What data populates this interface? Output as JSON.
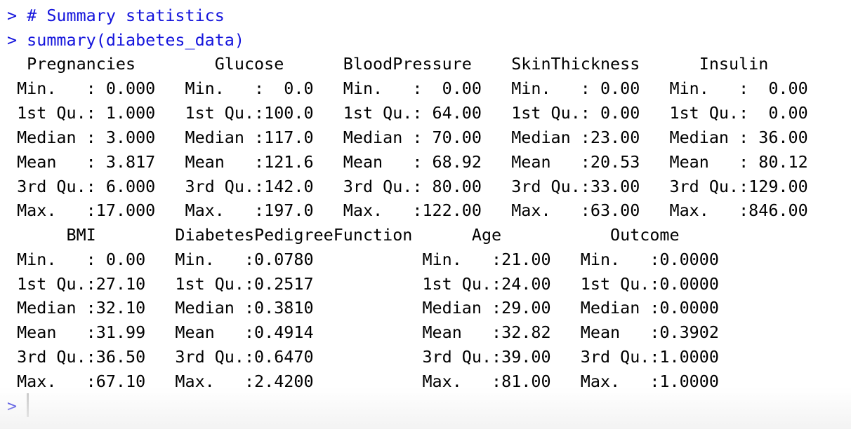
{
  "console": {
    "prompt": ">",
    "commands": [
      "> # Summary statistics",
      "> summary(diabetes_data)"
    ],
    "output_lines": [
      "  Pregnancies        Glucose      BloodPressure    SkinThickness      Insulin     ",
      " Min.   : 0.000   Min.   :  0.0   Min.   :  0.00   Min.   : 0.00   Min.   :  0.00  ",
      " 1st Qu.: 1.000   1st Qu.:100.0   1st Qu.: 64.00   1st Qu.: 0.00   1st Qu.:  0.00  ",
      " Median : 3.000   Median :117.0   Median : 70.00   Median :23.00   Median : 36.00  ",
      " Mean   : 3.817   Mean   :121.6   Mean   : 68.92   Mean   :20.53   Mean   : 80.12  ",
      " 3rd Qu.: 6.000   3rd Qu.:142.0   3rd Qu.: 80.00   3rd Qu.:33.00   3rd Qu.:129.00  ",
      " Max.   :17.000   Max.   :197.0   Max.   :122.00   Max.   :63.00   Max.   :846.00  ",
      "      BMI        DiabetesPedigreeFunction      Age           Outcome      ",
      " Min.   : 0.00   Min.   :0.0780           Min.   :21.00   Min.   :0.0000  ",
      " 1st Qu.:27.10   1st Qu.:0.2517           1st Qu.:24.00   1st Qu.:0.0000  ",
      " Median :32.10   Median :0.3810           Median :29.00   Median :0.0000  ",
      " Mean   :31.99   Mean   :0.4914           Mean   :32.82   Mean   :0.3902  ",
      " 3rd Qu.:36.50   3rd Qu.:0.6470           3rd Qu.:39.00   3rd Qu.:1.0000  ",
      " Max.   :67.10   Max.   :2.4200           Max.   :81.00   Max.   :1.0000  "
    ]
  },
  "colors": {
    "input_text": "#1414dc",
    "output_text": "#000000",
    "background": "#ffffff",
    "cursor": "#c4c4c4"
  }
}
